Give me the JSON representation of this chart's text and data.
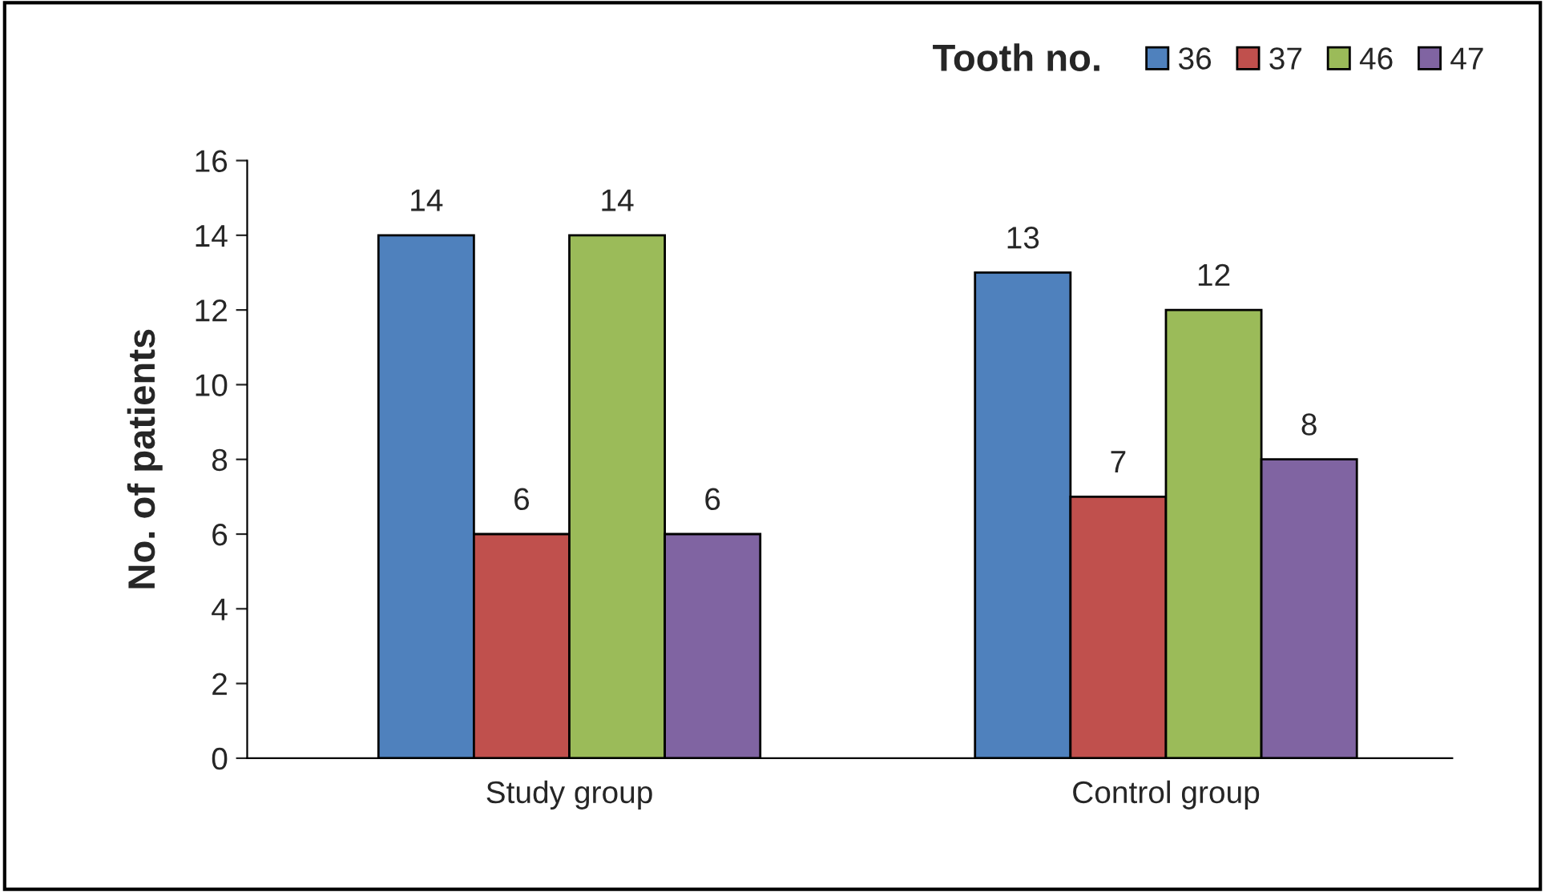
{
  "chart_data": {
    "type": "bar",
    "ylabel": "No. of patients",
    "legend_title": "Tooth no.",
    "categories": [
      "Study group",
      "Control group"
    ],
    "series": [
      {
        "name": "36",
        "color": "#4f81bd",
        "values": [
          14,
          13
        ]
      },
      {
        "name": "37",
        "color": "#c0504d",
        "values": [
          6,
          7
        ]
      },
      {
        "name": "46",
        "color": "#9bbb59",
        "values": [
          14,
          12
        ]
      },
      {
        "name": "47",
        "color": "#8064a2",
        "values": [
          6,
          8
        ]
      }
    ],
    "ylim": [
      0,
      16
    ],
    "yticks": [
      0,
      2,
      4,
      6,
      8,
      10,
      12,
      14,
      16
    ],
    "data_labels": true,
    "grid": false,
    "legend": "top right"
  }
}
